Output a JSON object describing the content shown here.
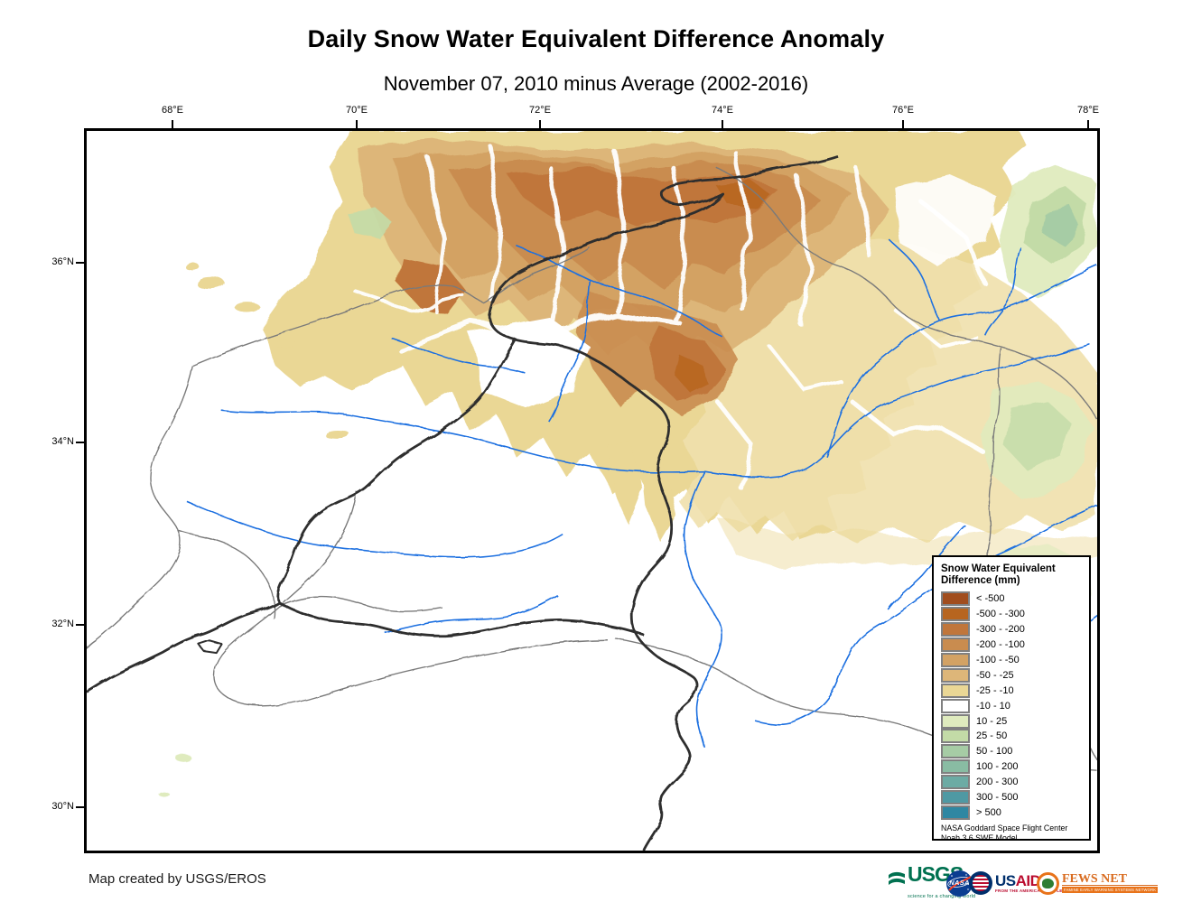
{
  "title": "Daily Snow Water Equivalent Difference Anomaly",
  "subtitle": "November 07, 2010 minus Average (2002-2016)",
  "axes": {
    "x_ticks": [
      "68°E",
      "70°E",
      "72°E",
      "74°E",
      "76°E",
      "78°E"
    ],
    "y_ticks": [
      "36°N",
      "34°N",
      "32°N",
      "30°N"
    ]
  },
  "map": {
    "layers": {
      "country_border_color": "#2d2d2d",
      "basin_boundary_color": "#7a7a7a",
      "river_color": "#1e6fe0",
      "no_change_color": "#ffffff"
    }
  },
  "legend": {
    "title_line1": "Snow Water Equivalent",
    "title_line2": "Difference (mm)",
    "entries": [
      {
        "label": "< -500",
        "color": "#a14d1d"
      },
      {
        "label": "-500 - -300",
        "color": "#b7651f"
      },
      {
        "label": "-300 - -200",
        "color": "#c0763b"
      },
      {
        "label": "-200 - -100",
        "color": "#c98c4f"
      },
      {
        "label": "-100 - -50",
        "color": "#d3a264"
      },
      {
        "label": "-50 - -25",
        "color": "#ddb679"
      },
      {
        "label": "-25 - -10",
        "color": "#ead795"
      },
      {
        "label": "-10 - 10",
        "color": "#ffffff"
      },
      {
        "label": "10 - 25",
        "color": "#dfebbe"
      },
      {
        "label": "25 - 50",
        "color": "#c3dba7"
      },
      {
        "label": "50 - 100",
        "color": "#a6cca5"
      },
      {
        "label": "100 - 200",
        "color": "#89bca3"
      },
      {
        "label": "200 - 300",
        "color": "#6caba4"
      },
      {
        "label": "300 - 500",
        "color": "#4f99a3"
      },
      {
        "label": "> 500",
        "color": "#2f87a2"
      }
    ],
    "source_line1": "NASA Goddard Space Flight Center",
    "source_line2": "Noah 3.6  SWE Model."
  },
  "footer": {
    "credit": "Map created by USGS/EROS"
  },
  "logos": {
    "usgs": {
      "text": "USGS",
      "tagline": "science for a changing world"
    },
    "nasa": {
      "text": "NASA"
    },
    "usaid": {
      "text_us": "US",
      "text_aid": "AID",
      "tagline": "FROM THE AMERICAN PEOPLE"
    },
    "fewsnet": {
      "text": "FEWS NET",
      "tagline": "FAMINE EARLY WARNING SYSTEMS NETWORK"
    }
  }
}
